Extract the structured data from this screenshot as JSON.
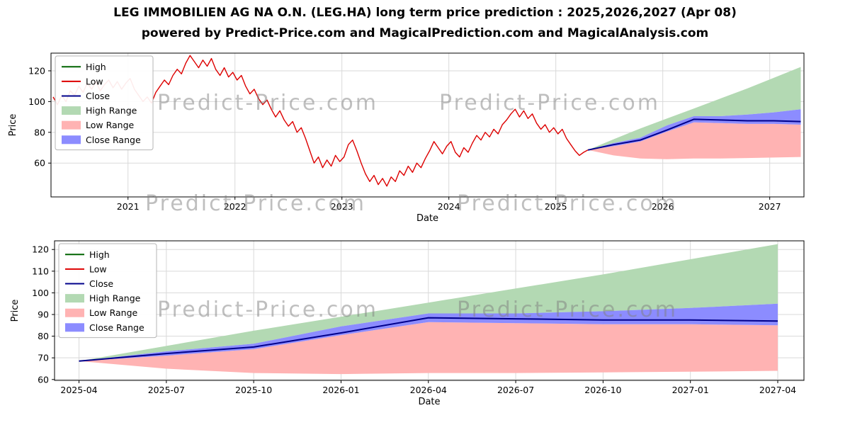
{
  "header": {
    "title": "LEG IMMOBILIEN AG NA O.N. (LEG.HA) long term price prediction : 2025,2026,2027 (Apr 08)",
    "subtitle": "powered by Predict-Price.com and MagicalPrediction.com and MagicalAnalysis.com"
  },
  "watermark": {
    "text": "Predict-Price.com"
  },
  "colors": {
    "high": "#006400",
    "low": "#dd0000",
    "close": "#00008b",
    "high_range": "#b3d9b3",
    "low_range": "#ffb3b3",
    "close_range": "#8c8cff",
    "grid": "#d9d9d9",
    "spine": "#000000"
  },
  "legend": {
    "items": [
      {
        "label": "High",
        "type": "line",
        "color": "#006400"
      },
      {
        "label": "Low",
        "type": "line",
        "color": "#dd0000"
      },
      {
        "label": "Close",
        "type": "line",
        "color": "#00008b"
      },
      {
        "label": "High Range",
        "type": "patch",
        "color": "#b3d9b3"
      },
      {
        "label": "Low Range",
        "type": "patch",
        "color": "#ffb3b3"
      },
      {
        "label": "Close Range",
        "type": "patch",
        "color": "#8c8cff"
      }
    ]
  },
  "chart_data": [
    {
      "type": "line",
      "title": "",
      "xlabel": "Date",
      "ylabel": "Price",
      "xlim": [
        2020.28,
        2027.32
      ],
      "ylim": [
        38,
        131.5
      ],
      "xticks": [
        2021,
        2022,
        2023,
        2024,
        2025,
        2026,
        2027
      ],
      "yticks": [
        60,
        80,
        100,
        120
      ],
      "series": [
        {
          "name": "Low",
          "color": "#dd0000",
          "points": [
            [
              2020.3,
              103
            ],
            [
              2020.34,
              98
            ],
            [
              2020.38,
              104
            ],
            [
              2020.42,
              100
            ],
            [
              2020.46,
              107
            ],
            [
              2020.5,
              104
            ],
            [
              2020.54,
              110
            ],
            [
              2020.58,
              106
            ],
            [
              2020.62,
              112
            ],
            [
              2020.66,
              108
            ],
            [
              2020.7,
              113
            ],
            [
              2020.74,
              107
            ],
            [
              2020.78,
              111
            ],
            [
              2020.82,
              114
            ],
            [
              2020.86,
              109
            ],
            [
              2020.9,
              113
            ],
            [
              2020.94,
              108
            ],
            [
              2020.98,
              112
            ],
            [
              2021.02,
              115
            ],
            [
              2021.06,
              108
            ],
            [
              2021.1,
              104
            ],
            [
              2021.14,
              100
            ],
            [
              2021.18,
              103
            ],
            [
              2021.22,
              99
            ],
            [
              2021.26,
              106
            ],
            [
              2021.3,
              110
            ],
            [
              2021.34,
              114
            ],
            [
              2021.38,
              111
            ],
            [
              2021.42,
              117
            ],
            [
              2021.46,
              121
            ],
            [
              2021.5,
              118
            ],
            [
              2021.54,
              125
            ],
            [
              2021.58,
              130
            ],
            [
              2021.62,
              126
            ],
            [
              2021.66,
              122
            ],
            [
              2021.7,
              127
            ],
            [
              2021.74,
              123
            ],
            [
              2021.78,
              128
            ],
            [
              2021.82,
              121
            ],
            [
              2021.86,
              117
            ],
            [
              2021.9,
              122
            ],
            [
              2021.94,
              116
            ],
            [
              2021.98,
              119
            ],
            [
              2022.02,
              114
            ],
            [
              2022.06,
              117
            ],
            [
              2022.1,
              110
            ],
            [
              2022.14,
              105
            ],
            [
              2022.18,
              108
            ],
            [
              2022.22,
              102
            ],
            [
              2022.26,
              98
            ],
            [
              2022.3,
              101
            ],
            [
              2022.34,
              95
            ],
            [
              2022.38,
              90
            ],
            [
              2022.42,
              94
            ],
            [
              2022.46,
              88
            ],
            [
              2022.5,
              84
            ],
            [
              2022.54,
              87
            ],
            [
              2022.58,
              80
            ],
            [
              2022.62,
              83
            ],
            [
              2022.66,
              76
            ],
            [
              2022.7,
              68
            ],
            [
              2022.74,
              60
            ],
            [
              2022.78,
              64
            ],
            [
              2022.82,
              57
            ],
            [
              2022.86,
              62
            ],
            [
              2022.9,
              58
            ],
            [
              2022.94,
              65
            ],
            [
              2022.98,
              61
            ],
            [
              2023.02,
              64
            ],
            [
              2023.06,
              72
            ],
            [
              2023.1,
              75
            ],
            [
              2023.14,
              68
            ],
            [
              2023.18,
              60
            ],
            [
              2023.22,
              53
            ],
            [
              2023.26,
              48
            ],
            [
              2023.3,
              52
            ],
            [
              2023.34,
              46
            ],
            [
              2023.38,
              50
            ],
            [
              2023.42,
              45
            ],
            [
              2023.46,
              51
            ],
            [
              2023.5,
              48
            ],
            [
              2023.54,
              55
            ],
            [
              2023.58,
              52
            ],
            [
              2023.62,
              58
            ],
            [
              2023.66,
              54
            ],
            [
              2023.7,
              60
            ],
            [
              2023.74,
              57
            ],
            [
              2023.78,
              63
            ],
            [
              2023.82,
              68
            ],
            [
              2023.86,
              74
            ],
            [
              2023.9,
              70
            ],
            [
              2023.94,
              66
            ],
            [
              2023.98,
              71
            ],
            [
              2024.02,
              74
            ],
            [
              2024.06,
              67
            ],
            [
              2024.1,
              64
            ],
            [
              2024.14,
              70
            ],
            [
              2024.18,
              67
            ],
            [
              2024.22,
              73
            ],
            [
              2024.26,
              78
            ],
            [
              2024.3,
              75
            ],
            [
              2024.34,
              80
            ],
            [
              2024.38,
              77
            ],
            [
              2024.42,
              82
            ],
            [
              2024.46,
              79
            ],
            [
              2024.5,
              85
            ],
            [
              2024.54,
              88
            ],
            [
              2024.58,
              92
            ],
            [
              2024.62,
              95
            ],
            [
              2024.66,
              90
            ],
            [
              2024.7,
              94
            ],
            [
              2024.74,
              89
            ],
            [
              2024.78,
              92
            ],
            [
              2024.82,
              86
            ],
            [
              2024.86,
              82
            ],
            [
              2024.9,
              85
            ],
            [
              2024.94,
              80
            ],
            [
              2024.98,
              83
            ],
            [
              2025.02,
              79
            ],
            [
              2025.06,
              82
            ],
            [
              2025.1,
              76
            ],
            [
              2025.14,
              72
            ],
            [
              2025.18,
              68
            ],
            [
              2025.22,
              65
            ],
            [
              2025.26,
              67
            ],
            [
              2025.3,
              68.5
            ]
          ]
        }
      ],
      "forecast": {
        "x": [
          2025.3,
          2025.54,
          2025.79,
          2026.04,
          2026.29,
          2026.54,
          2026.79,
          2027.04,
          2027.29
        ],
        "high_top": [
          68.5,
          75.5,
          82.5,
          89,
          95.5,
          102,
          108.5,
          115.5,
          122.5
        ],
        "close_upper": [
          68.5,
          73,
          76.5,
          84.5,
          90.5,
          90.5,
          91.5,
          93,
          95
        ],
        "close": [
          68.5,
          72,
          75,
          81.5,
          88.5,
          88,
          87.5,
          87.5,
          87
        ],
        "close_lower": [
          68.5,
          71,
          74,
          80.5,
          86.5,
          86,
          85.5,
          85.5,
          85
        ],
        "low_bottom": [
          68.5,
          65,
          63,
          62.5,
          63,
          63,
          63.3,
          63.6,
          64
        ]
      }
    },
    {
      "type": "line",
      "title": "",
      "xlabel": "Date",
      "ylabel": "Price",
      "ylim": [
        59.6,
        124
      ],
      "yticks": [
        60,
        70,
        80,
        90,
        100,
        110,
        120
      ],
      "xtick_labels": [
        "2025-04",
        "2025-07",
        "2025-10",
        "2026-01",
        "2026-04",
        "2026-07",
        "2026-10",
        "2027-01",
        "2027-04"
      ],
      "xlim_index": [
        -0.28,
        8.3
      ],
      "forecast": {
        "x": [
          0,
          1,
          2,
          3,
          4,
          5,
          6,
          7,
          8
        ],
        "high_top": [
          68.5,
          75.5,
          82.5,
          89,
          95.5,
          102,
          108.5,
          115.5,
          122.5
        ],
        "close_upper": [
          68.5,
          73,
          76.5,
          84.5,
          90.5,
          90.5,
          91.5,
          93,
          95
        ],
        "close": [
          68.5,
          72,
          75,
          81.5,
          88.5,
          88,
          87.5,
          87.5,
          87
        ],
        "close_lower": [
          68.5,
          71,
          74,
          80.5,
          86.5,
          86,
          85.5,
          85.5,
          85
        ],
        "low_bottom": [
          68.5,
          65,
          63,
          62.5,
          63,
          63,
          63.3,
          63.6,
          64
        ]
      }
    }
  ]
}
